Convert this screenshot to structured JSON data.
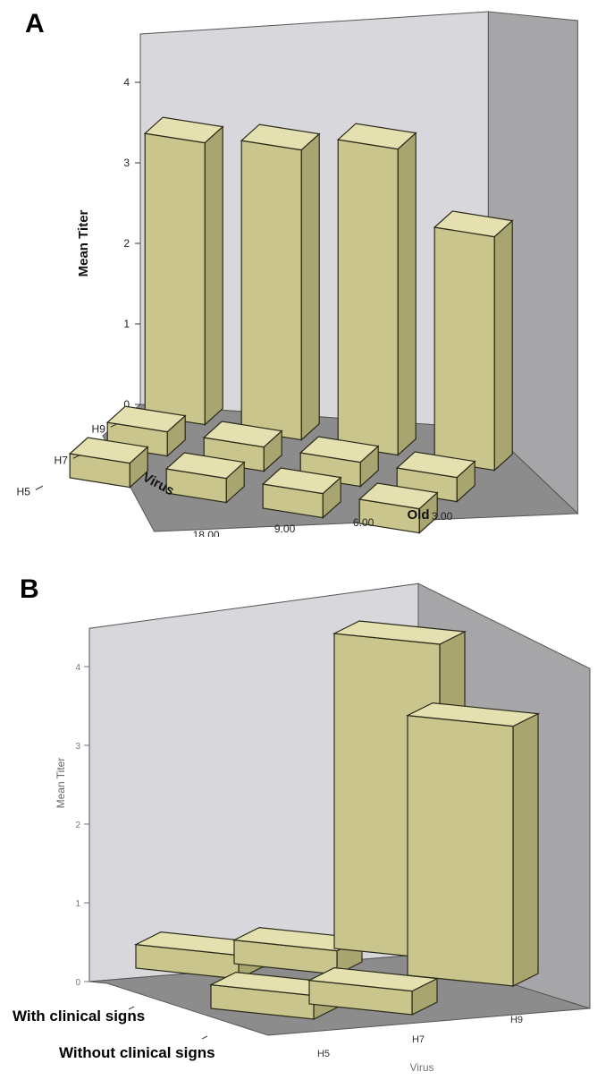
{
  "chart_data": [
    {
      "panel": "A",
      "type": "bar3d",
      "zlabel": "Mean Titer",
      "xlabel": "Old",
      "ylabel": "Virus",
      "x_categories": [
        "18.00",
        "9.00",
        "6.00",
        "3.00"
      ],
      "y_categories": [
        "H9",
        "H7",
        "H5"
      ],
      "zlim": [
        0,
        4
      ],
      "z_ticks": [
        "0",
        "1",
        "2",
        "3",
        "4"
      ],
      "values": {
        "H9": [
          3.5,
          3.6,
          3.8,
          2.9
        ],
        "H7": [
          0.3,
          0.3,
          0.3,
          0.3
        ],
        "H5": [
          0.3,
          0.3,
          0.3,
          0.3
        ]
      },
      "colors": {
        "bar_front": "#c9c58c",
        "bar_top": "#e4e0b0",
        "bar_side": "#a9a570",
        "back_wall": "#d8d8dc",
        "side_wall": "#a6a6a8",
        "floor": "#8c8c8c"
      }
    },
    {
      "panel": "B",
      "type": "bar3d",
      "zlabel": "Mean Titer",
      "xlabel": "Virus",
      "x_categories": [
        "H5",
        "H7",
        "H9"
      ],
      "y_categories": [
        "With clinical signs",
        "Without clinical signs"
      ],
      "zlim": [
        0,
        4
      ],
      "z_ticks": [
        "0",
        "1",
        "2",
        "3",
        "4"
      ],
      "values": {
        "With clinical signs": [
          0.3,
          0.3,
          4.0
        ],
        "Without clinical signs": [
          0.3,
          0.3,
          3.3
        ]
      },
      "colors": {
        "bar_front": "#c9c58c",
        "bar_top": "#e4e0b0",
        "bar_side": "#a9a570",
        "back_wall": "#d8d8dc",
        "side_wall": "#a6a6a8",
        "floor": "#8c8c8c"
      }
    }
  ],
  "panels": {
    "a_letter": "A",
    "b_letter": "B"
  }
}
